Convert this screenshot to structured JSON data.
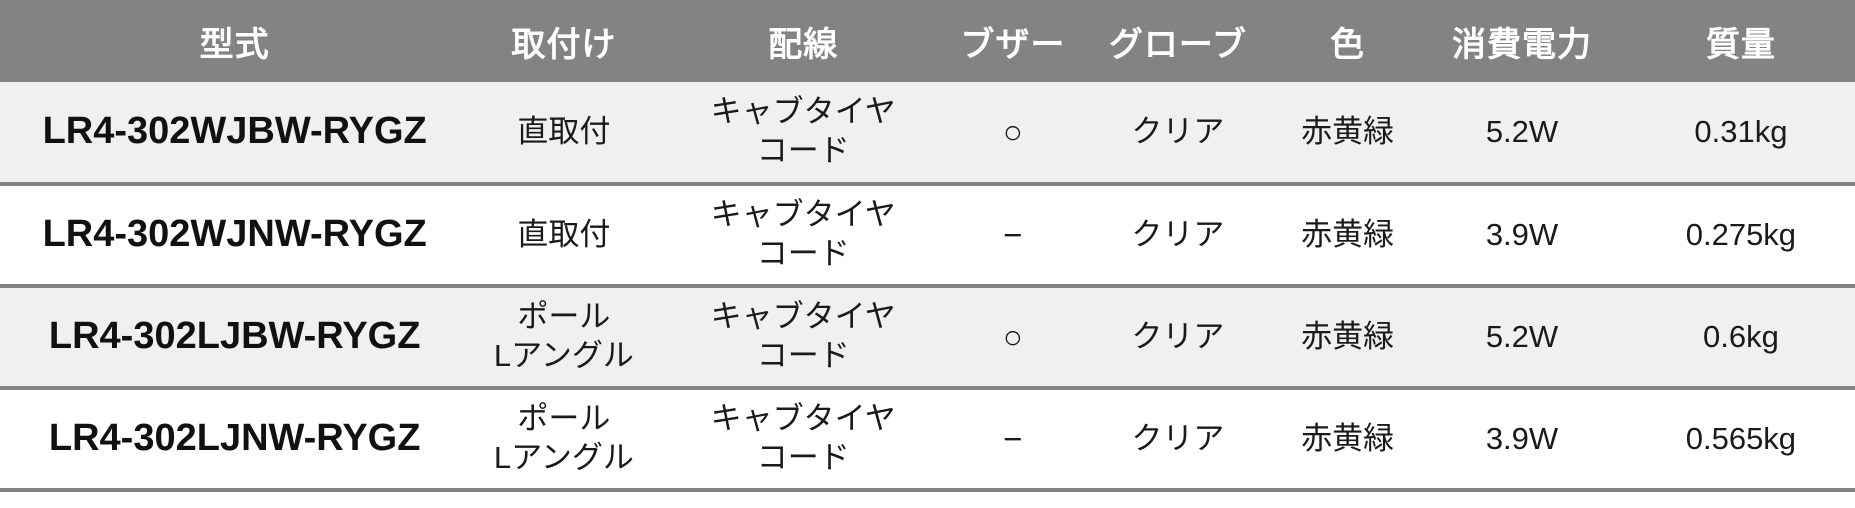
{
  "table": {
    "columns": [
      {
        "key": "model",
        "label": "型式"
      },
      {
        "key": "mounting",
        "label": "取付け"
      },
      {
        "key": "wiring",
        "label": "配線"
      },
      {
        "key": "buzzer",
        "label": "ブザー"
      },
      {
        "key": "globe",
        "label": "グローブ"
      },
      {
        "key": "color",
        "label": "色"
      },
      {
        "key": "power",
        "label": "消費電力"
      },
      {
        "key": "weight",
        "label": "質量"
      }
    ],
    "rows": [
      {
        "model": "LR4-302WJBW-RYGZ",
        "mounting": "直取付",
        "wiring": "キャブタイヤ\nコード",
        "buzzer": "○",
        "globe": "クリア",
        "color": "赤黄緑",
        "power": "5.2W",
        "weight": "0.31kg"
      },
      {
        "model": "LR4-302WJNW-RYGZ",
        "mounting": "直取付",
        "wiring": "キャブタイヤ\nコード",
        "buzzer": "−",
        "globe": "クリア",
        "color": "赤黄緑",
        "power": "3.9W",
        "weight": "0.275kg"
      },
      {
        "model": "LR4-302LJBW-RYGZ",
        "mounting": "ポール\nLアングル",
        "wiring": "キャブタイヤ\nコード",
        "buzzer": "○",
        "globe": "クリア",
        "color": "赤黄緑",
        "power": "5.2W",
        "weight": "0.6kg"
      },
      {
        "model": "LR4-302LJNW-RYGZ",
        "mounting": "ポール\nLアングル",
        "wiring": "キャブタイヤ\nコード",
        "buzzer": "−",
        "globe": "クリア",
        "color": "赤黄緑",
        "power": "3.9W",
        "weight": "0.565kg"
      }
    ],
    "colors": {
      "header_bg": "#838383",
      "header_text": "#ffffff",
      "row_odd_bg": "#f0f0f0",
      "row_even_bg": "#ffffff",
      "border": "#838383",
      "cell_text": "#1a1a1a"
    }
  }
}
